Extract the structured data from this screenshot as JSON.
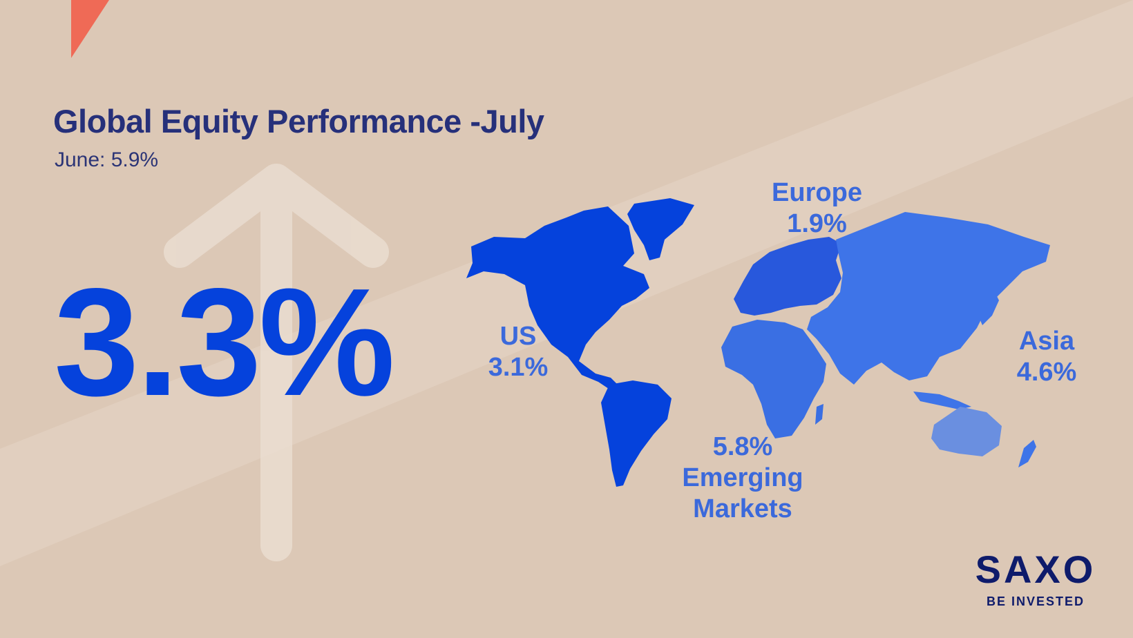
{
  "header": {
    "title": "Global Equity Performance -July",
    "subtitle": "June: 5.9%"
  },
  "headline_value": "3.3%",
  "regions": [
    {
      "name": "US",
      "value": "3.1%"
    },
    {
      "name": "Europe",
      "value": "1.9%"
    },
    {
      "name": "Asia",
      "value": "4.6%"
    },
    {
      "name": "Emerging Markets",
      "value": "5.8%"
    }
  ],
  "brand": {
    "name": "SAXO",
    "tagline": "BE INVESTED"
  },
  "colors": {
    "background": "#dcc8b6",
    "title": "#26307a",
    "headline": "#0542dc",
    "americas": "#0542dc",
    "europe": "#2858dc",
    "asia": "#3e74e8",
    "africa": "#3a6fe3",
    "oceania": "#6a8fe0",
    "accent": "#ef6a56"
  },
  "icons": {
    "background_arrow": "up-arrow-icon",
    "map": "world-map"
  }
}
